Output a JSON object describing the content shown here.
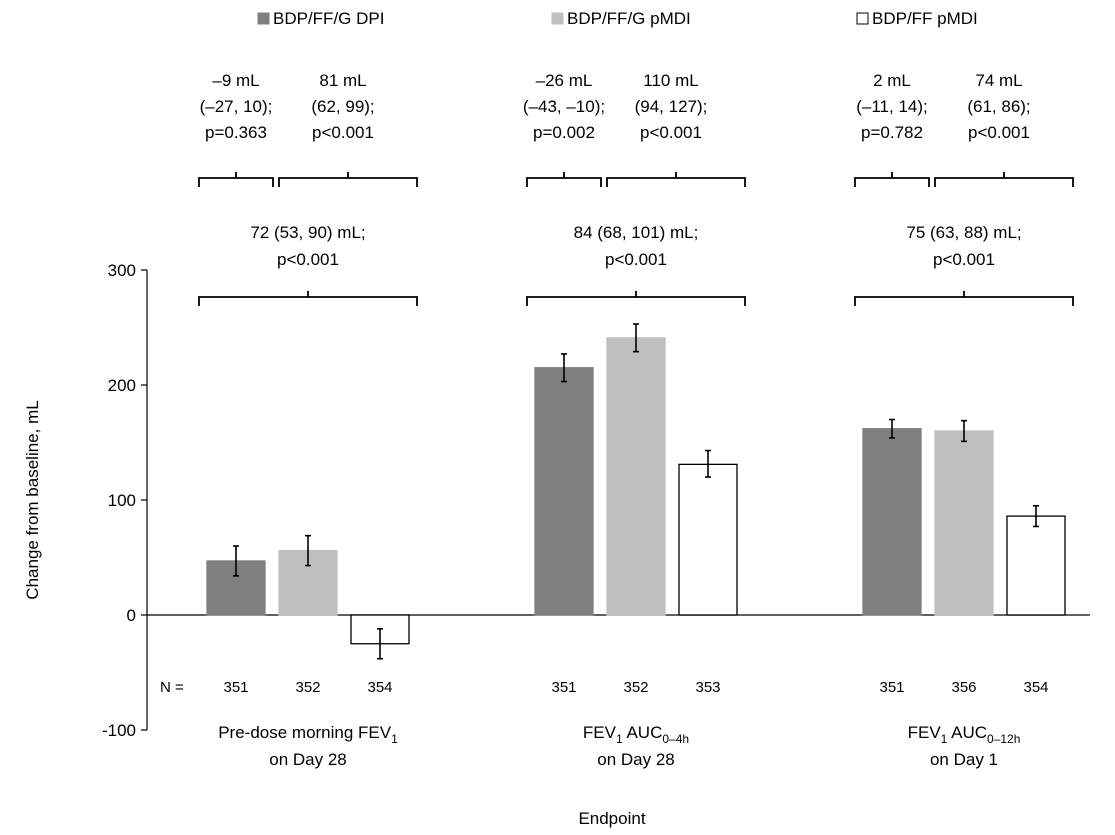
{
  "chart_data": {
    "type": "bar",
    "ylabel": "Change from baseline, mL",
    "xlabel": "Endpoint",
    "ylim": [
      -100,
      300
    ],
    "yticks": [
      -100,
      0,
      100,
      200,
      300
    ],
    "n_prefix": "N =",
    "legend_position": "top",
    "categories": [
      {
        "label": "Pre-dose morning FEV",
        "sub": "1",
        "label_after": "",
        "line2": "on Day 28"
      },
      {
        "label": "FEV",
        "sub": "1",
        "label_after": " AUC",
        "sub2": "0–4h",
        "line2": "on Day 28"
      },
      {
        "label": "FEV",
        "sub": "1",
        "label_after": " AUC",
        "sub2": "0–12h",
        "line2": "on Day 1"
      }
    ],
    "series": [
      {
        "name": "BDP/FF/G DPI",
        "color": "#7f7f7f",
        "values": [
          47,
          215,
          162
        ],
        "err_low": [
          34,
          203,
          154
        ],
        "err_high": [
          60,
          227,
          170
        ],
        "n": [
          "351",
          "351",
          "351"
        ]
      },
      {
        "name": "BDP/FF/G pMDI",
        "color": "#bfbfbf",
        "values": [
          56,
          241,
          160
        ],
        "err_low": [
          43,
          229,
          151
        ],
        "err_high": [
          69,
          253,
          169
        ],
        "n": [
          "352",
          "352",
          "356"
        ]
      },
      {
        "name": "BDP/FF pMDI",
        "color": "#ffffff",
        "values": [
          -25,
          131,
          86
        ],
        "err_low": [
          -38,
          120,
          77
        ],
        "err_high": [
          -12,
          143,
          95
        ],
        "n": [
          "354",
          "353",
          "354"
        ]
      }
    ],
    "annotations": [
      {
        "left": [
          "–9 mL",
          "(–27, 10);",
          "p=0.363"
        ],
        "right": [
          "81 mL",
          "(62, 99);",
          "p<0.001"
        ],
        "overall": [
          "72 (53, 90) mL;",
          "p<0.001"
        ]
      },
      {
        "left": [
          "–26 mL",
          "(–43, –10);",
          "p=0.002"
        ],
        "right": [
          "110 mL",
          "(94, 127);",
          "p<0.001"
        ],
        "overall": [
          "84 (68, 101) mL;",
          "p<0.001"
        ]
      },
      {
        "left": [
          "2 mL",
          "(–11, 14);",
          "p=0.782"
        ],
        "right": [
          "74 mL",
          "(61, 86);",
          "p<0.001"
        ],
        "overall": [
          "75 (63, 88) mL;",
          "p<0.001"
        ]
      }
    ]
  }
}
